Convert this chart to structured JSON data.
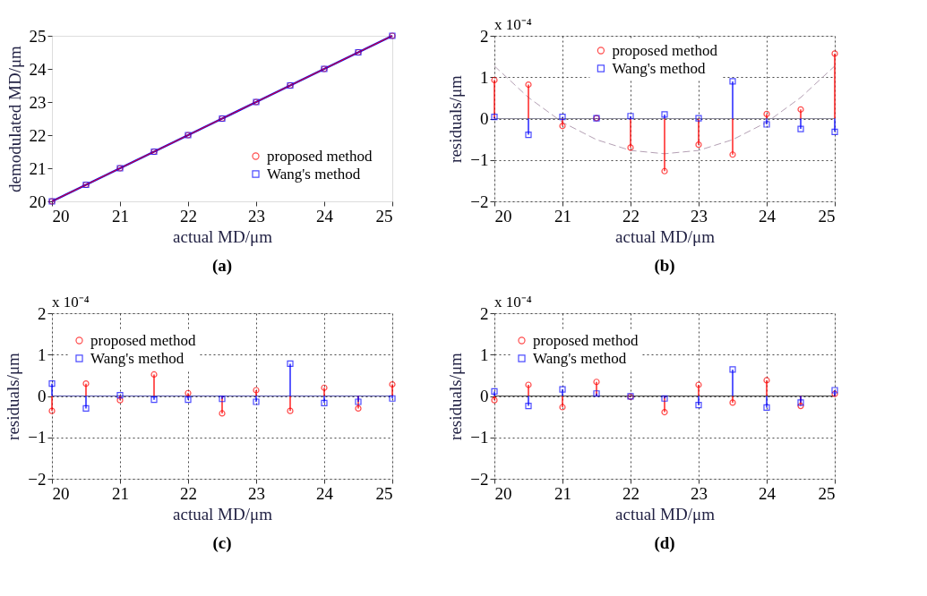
{
  "chart_data": [
    {
      "type": "line",
      "xlabel": "actual MD/μm",
      "ylabel": "demodulated MD/μm",
      "annotations": [
        "(a)"
      ],
      "x": [
        20,
        20.5,
        21,
        21.5,
        22,
        22.5,
        23,
        23.5,
        24,
        24.5,
        25
      ],
      "xlim": [
        20,
        25
      ],
      "xticks": [
        20,
        21,
        22,
        23,
        24,
        25
      ],
      "ylim": [
        20,
        25
      ],
      "yticks": [
        20,
        21,
        22,
        23,
        24,
        25
      ],
      "grid": false,
      "legend": "bottom right",
      "line_style": "solid",
      "series": [
        {
          "name": "proposed method",
          "color": "#ff0000",
          "marker": "circle",
          "values": [
            20,
            20.5,
            21,
            21.5,
            22,
            22.5,
            23,
            23.5,
            24,
            24.5,
            25
          ]
        },
        {
          "name": "Wang's method",
          "color": "#0000ff",
          "marker": "square",
          "values": [
            20,
            20.5,
            21,
            21.5,
            22,
            22.5,
            23,
            23.5,
            24,
            24.5,
            25
          ]
        }
      ]
    },
    {
      "type": "lollipop",
      "xlabel": "actual MD/μm",
      "ylabel": "residuals/μm",
      "annotations": [
        "x 10⁻⁴",
        "(b)"
      ],
      "x": [
        20,
        20.5,
        21,
        21.5,
        22,
        22.5,
        23,
        23.5,
        24,
        24.5,
        25
      ],
      "xlim": [
        20,
        25
      ],
      "xticks": [
        20,
        21,
        22,
        23,
        24,
        25
      ],
      "ylim": [
        -2,
        2
      ],
      "yticks": [
        -2,
        -1,
        0,
        1,
        2
      ],
      "grid": true,
      "legend": "top",
      "ref_lines": [
        {
          "axis": "y",
          "value": 0,
          "color": "#8a8a9a"
        }
      ],
      "series": [
        {
          "name": "proposed method",
          "color": "#ff0000",
          "marker": "circle",
          "values": [
            0.93,
            0.82,
            -0.18,
            0.01,
            -0.7,
            -1.27,
            -0.63,
            -0.87,
            0.11,
            0.22,
            1.57
          ]
        },
        {
          "name": "Wang's method",
          "color": "#0000ff",
          "marker": "square",
          "values": [
            0.04,
            -0.39,
            0.04,
            0.01,
            0.06,
            0.1,
            0.01,
            0.9,
            -0.14,
            -0.25,
            -0.32
          ]
        },
        {
          "type": "line",
          "color": "#b4a0b4",
          "line_style": "dashed",
          "marker": "none",
          "values": [
            1.27,
            0.51,
            -0.09,
            -0.51,
            -0.77,
            -0.85,
            -0.77,
            -0.51,
            -0.09,
            0.51,
            1.27
          ]
        }
      ]
    },
    {
      "type": "lollipop",
      "xlabel": "actual MD/μm",
      "ylabel": "residuals/μm",
      "annotations": [
        "x 10⁻⁴",
        "(c)"
      ],
      "x": [
        20,
        20.5,
        21,
        21.5,
        22,
        22.5,
        23,
        23.5,
        24,
        24.5,
        25
      ],
      "xlim": [
        20,
        25
      ],
      "xticks": [
        20,
        21,
        22,
        23,
        24,
        25
      ],
      "ylim": [
        -2,
        2
      ],
      "yticks": [
        -2,
        -1,
        0,
        1,
        2
      ],
      "grid": true,
      "legend": "top left",
      "ref_lines": [
        {
          "axis": "y",
          "value": 0,
          "color": "#5555aa"
        }
      ],
      "series": [
        {
          "name": "proposed method",
          "color": "#ff0000",
          "marker": "circle",
          "values": [
            -0.36,
            0.3,
            -0.1,
            0.52,
            0.07,
            -0.42,
            0.14,
            -0.36,
            0.2,
            -0.3,
            0.28
          ]
        },
        {
          "name": "Wang's method",
          "color": "#0000ff",
          "marker": "square",
          "values": [
            0.3,
            -0.3,
            0.02,
            -0.09,
            -0.09,
            -0.07,
            -0.14,
            0.78,
            -0.17,
            -0.14,
            -0.06
          ]
        }
      ]
    },
    {
      "type": "lollipop",
      "xlabel": "actual MD/μm",
      "ylabel": "residuals/μm",
      "annotations": [
        "x 10⁻⁴",
        "(d)"
      ],
      "x": [
        20,
        20.5,
        21,
        21.5,
        22,
        22.5,
        23,
        23.5,
        24,
        24.5,
        25
      ],
      "xlim": [
        20,
        25
      ],
      "xticks": [
        20,
        21,
        22,
        23,
        24,
        25
      ],
      "ylim": [
        -2,
        2
      ],
      "yticks": [
        -2,
        -1,
        0,
        1,
        2
      ],
      "grid": true,
      "legend": "top left",
      "ref_lines": [
        {
          "axis": "y",
          "value": 0,
          "color": "#444444"
        }
      ],
      "series": [
        {
          "name": "proposed method",
          "color": "#ff0000",
          "marker": "circle",
          "values": [
            -0.1,
            0.27,
            -0.27,
            0.34,
            -0.02,
            -0.39,
            0.27,
            -0.16,
            0.38,
            -0.24,
            0.05
          ]
        },
        {
          "name": "Wang's method",
          "color": "#0000ff",
          "marker": "square",
          "values": [
            0.11,
            -0.24,
            0.16,
            0.06,
            -0.01,
            -0.06,
            -0.22,
            0.64,
            -0.28,
            -0.16,
            0.14
          ]
        }
      ]
    }
  ]
}
